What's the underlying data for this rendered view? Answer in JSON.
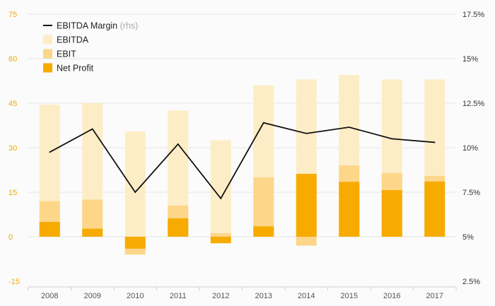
{
  "chart_data": {
    "type": "bar",
    "categories": [
      "2008",
      "2009",
      "2010",
      "2011",
      "2012",
      "2013",
      "2014",
      "2015",
      "2016",
      "2017"
    ],
    "series": [
      {
        "name": "EBITDA",
        "kind": "bar",
        "axis": "left",
        "color": "#fdedc6",
        "values": [
          44.5,
          45,
          35.5,
          42.5,
          32.5,
          51,
          53,
          54.5,
          53,
          53
        ]
      },
      {
        "name": "EBIT",
        "kind": "bar",
        "axis": "left",
        "color": "#fdd68a",
        "values": [
          12,
          12.5,
          -6,
          10.5,
          1.2,
          20,
          -3,
          24,
          21.5,
          20.5
        ]
      },
      {
        "name": "Net Profit",
        "kind": "bar",
        "axis": "left",
        "color": "#f7ab00",
        "values": [
          5,
          2.7,
          -4,
          6.2,
          -2.2,
          3.5,
          21.2,
          18.5,
          15.7,
          18.6
        ]
      },
      {
        "name": "EBITDA Margin",
        "kind": "line",
        "axis": "right",
        "color": "#111111",
        "values": [
          9.75,
          11.05,
          7.5,
          10.2,
          7.15,
          11.4,
          10.8,
          11.15,
          10.5,
          10.3
        ]
      }
    ],
    "legend": {
      "entries": [
        {
          "label": "EBITDA Margin",
          "suffix": "(rhs)",
          "swatch": "line"
        },
        {
          "label": "EBITDA",
          "swatch": "box"
        },
        {
          "label": "EBIT",
          "swatch": "box"
        },
        {
          "label": "Net Profit",
          "swatch": "box"
        }
      ],
      "placement": "top-left"
    },
    "left_axis": {
      "ylim": [
        -15,
        75
      ],
      "ticks": [
        "-15",
        "0",
        "15",
        "30",
        "45",
        "60",
        "75"
      ],
      "color": "#f2a900"
    },
    "right_axis": {
      "ylim": [
        2.5,
        17.5
      ],
      "ticks": [
        "2.5%",
        "5%",
        "7.5%",
        "10%",
        "12.5%",
        "15%",
        "17.5%"
      ]
    },
    "grid": true
  }
}
